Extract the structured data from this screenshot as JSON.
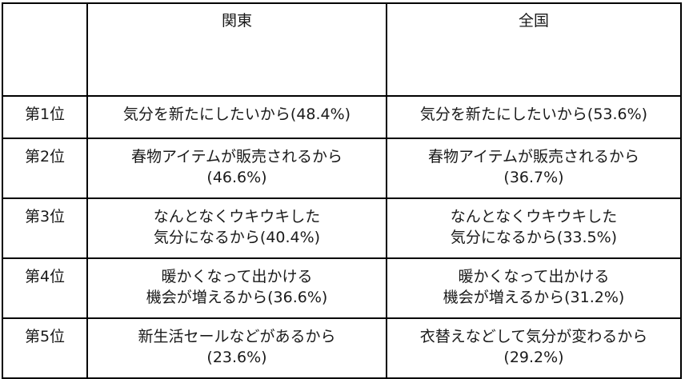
{
  "header": {
    "corner": "",
    "col_kanto": "関東",
    "col_national": "全国"
  },
  "rows": [
    {
      "rank": "第1位",
      "kanto": [
        "気分を新たにしたいから(48.4%)"
      ],
      "national": [
        "気分を新たにしたいから(53.6%)"
      ]
    },
    {
      "rank": "第2位",
      "kanto": [
        "春物アイテムが販売されるから",
        "(46.6%)"
      ],
      "national": [
        "春物アイテムが販売されるから",
        "(36.7%)"
      ]
    },
    {
      "rank": "第3位",
      "kanto": [
        "なんとなくウキウキした",
        "気分になるから(40.4%)"
      ],
      "national": [
        "なんとなくウキウキした",
        "気分になるから(33.5%)"
      ]
    },
    {
      "rank": "第4位",
      "kanto": [
        "暖かくなって出かける",
        "機会が増えるから(36.6%)"
      ],
      "national": [
        "暖かくなって出かける",
        "機会が増えるから(31.2%)"
      ]
    },
    {
      "rank": "第5位",
      "kanto": [
        "新生活セールなどがあるから",
        "(23.6%)"
      ],
      "national": [
        "衣替えなどして気分が変わるから",
        "(29.2%)"
      ]
    }
  ]
}
